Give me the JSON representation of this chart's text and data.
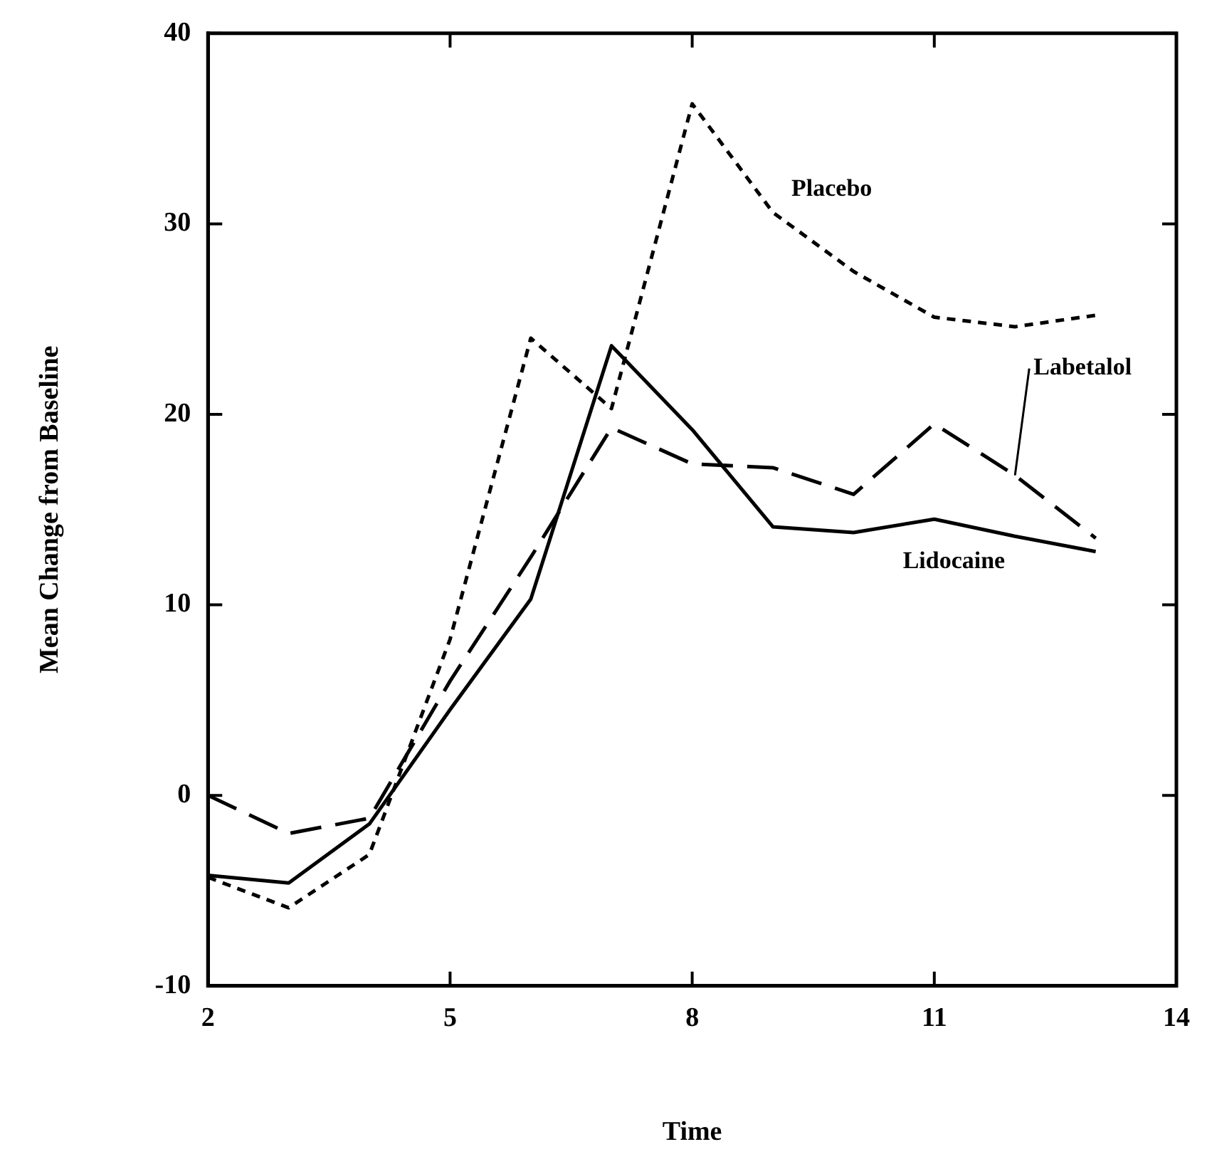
{
  "chart_data": {
    "type": "line",
    "xlabel": "Time",
    "ylabel": "Mean Change from Baseline",
    "x": [
      2,
      3,
      4,
      5,
      6,
      7,
      8,
      9,
      10,
      11,
      12,
      13
    ],
    "series": [
      {
        "name": "Placebo",
        "color": "#000000",
        "line_style": "dotted",
        "values": [
          -4.3,
          -5.9,
          -3.1,
          8.2,
          24,
          20.3,
          36.3,
          30.6,
          27.5,
          25.1,
          24.6,
          25.2
        ]
      },
      {
        "name": "Labetalol",
        "color": "#000000",
        "line_style": "dashed",
        "values": [
          0,
          -2,
          -1.2,
          6,
          12.5,
          19.3,
          17.4,
          17.2,
          15.8,
          19.5,
          16.8,
          13.5
        ]
      },
      {
        "name": "Lidocaine",
        "color": "#000000",
        "line_style": "solid",
        "values": [
          -4.2,
          -4.6,
          -1.5,
          4.5,
          10.3,
          23.6,
          19.2,
          14.1,
          13.8,
          14.5,
          13.6,
          12.8
        ]
      }
    ],
    "xlim": [
      2,
      14
    ],
    "xticks": [
      2,
      5,
      8,
      11,
      14
    ],
    "ylim": [
      -10,
      40
    ],
    "yticks": [
      -10,
      0,
      10,
      20,
      30,
      40
    ],
    "grid": false,
    "legend": false,
    "marker": "none"
  }
}
